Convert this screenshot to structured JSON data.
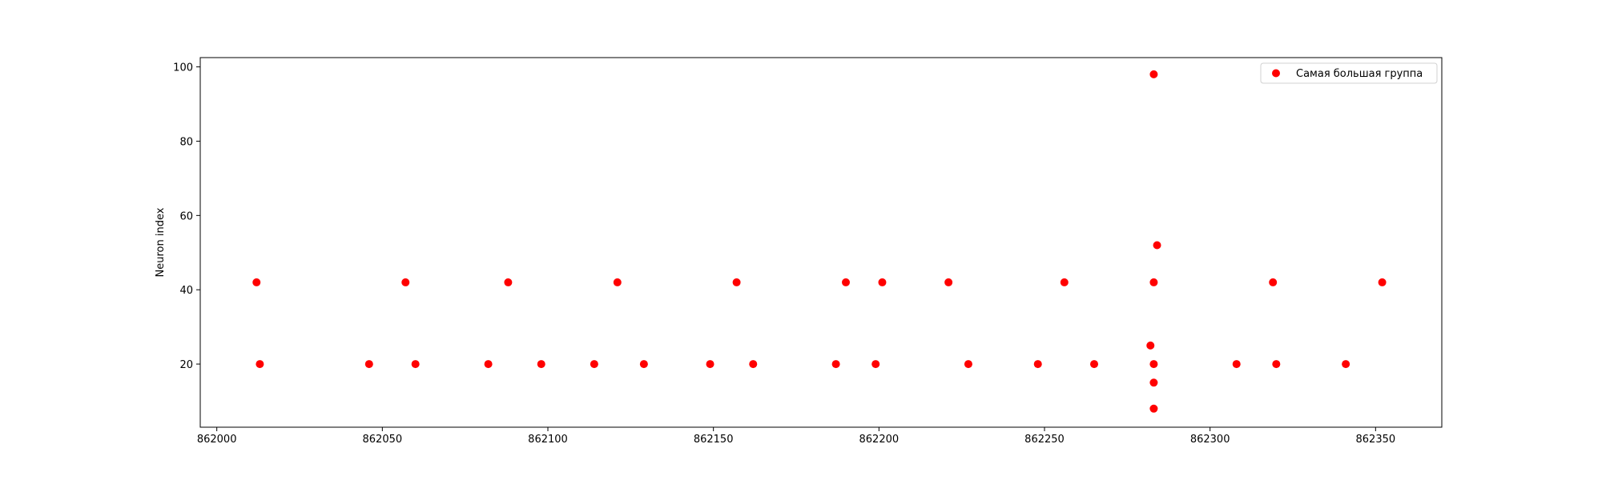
{
  "chart_data": {
    "type": "scatter",
    "title": "",
    "xlabel": "",
    "ylabel": "Neuron index",
    "xlim": [
      861995,
      862370
    ],
    "ylim": [
      3,
      102.5
    ],
    "xticks": [
      862000,
      862050,
      862100,
      862150,
      862200,
      862250,
      862300,
      862350
    ],
    "yticks": [
      20,
      40,
      60,
      80,
      100
    ],
    "grid": false,
    "legend_position": "top-right",
    "series": [
      {
        "name": "Самая большая группа",
        "color": "#ff0000",
        "points": [
          {
            "x": 862012,
            "y": 42
          },
          {
            "x": 862013,
            "y": 20
          },
          {
            "x": 862046,
            "y": 20
          },
          {
            "x": 862057,
            "y": 42
          },
          {
            "x": 862060,
            "y": 20
          },
          {
            "x": 862082,
            "y": 20
          },
          {
            "x": 862088,
            "y": 42
          },
          {
            "x": 862098,
            "y": 20
          },
          {
            "x": 862114,
            "y": 20
          },
          {
            "x": 862121,
            "y": 42
          },
          {
            "x": 862129,
            "y": 20
          },
          {
            "x": 862149,
            "y": 20
          },
          {
            "x": 862157,
            "y": 42
          },
          {
            "x": 862162,
            "y": 20
          },
          {
            "x": 862187,
            "y": 20
          },
          {
            "x": 862190,
            "y": 42
          },
          {
            "x": 862199,
            "y": 20
          },
          {
            "x": 862201,
            "y": 42
          },
          {
            "x": 862221,
            "y": 42
          },
          {
            "x": 862227,
            "y": 20
          },
          {
            "x": 862248,
            "y": 20
          },
          {
            "x": 862256,
            "y": 42
          },
          {
            "x": 862265,
            "y": 20
          },
          {
            "x": 862283,
            "y": 98
          },
          {
            "x": 862284,
            "y": 52
          },
          {
            "x": 862283,
            "y": 42
          },
          {
            "x": 862282,
            "y": 25
          },
          {
            "x": 862283,
            "y": 20
          },
          {
            "x": 862283,
            "y": 15
          },
          {
            "x": 862283,
            "y": 8
          },
          {
            "x": 862308,
            "y": 20
          },
          {
            "x": 862319,
            "y": 42
          },
          {
            "x": 862320,
            "y": 20
          },
          {
            "x": 862341,
            "y": 20
          },
          {
            "x": 862352,
            "y": 42
          }
        ]
      }
    ]
  }
}
